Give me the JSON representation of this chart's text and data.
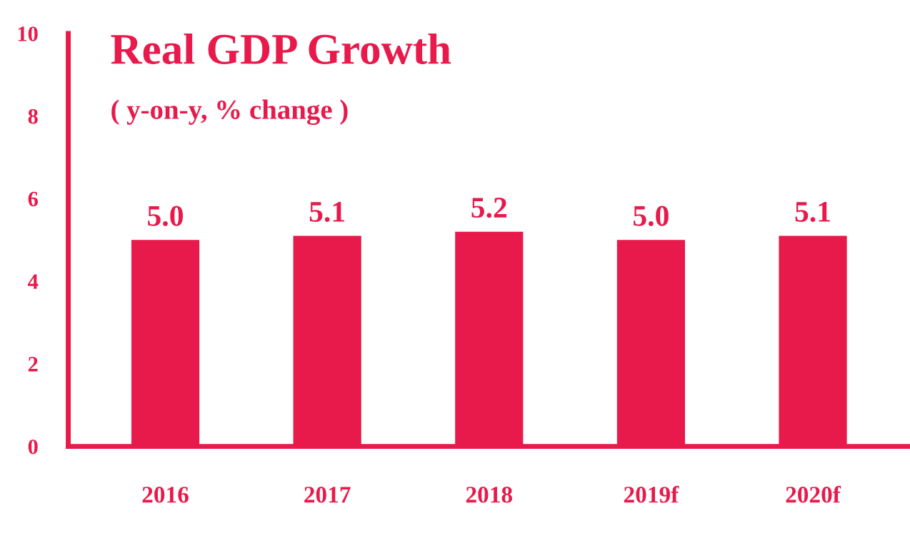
{
  "chart_data": {
    "type": "bar",
    "title": "Real GDP Growth",
    "subtitle": "( y-on-y, % change )",
    "categories": [
      "2016",
      "2017",
      "2018",
      "2019f",
      "2020f"
    ],
    "values": [
      5.0,
      5.1,
      5.2,
      5.0,
      5.1
    ],
    "color": "#e8194b",
    "ylim": [
      0,
      10
    ],
    "yticks": [
      0,
      2,
      4,
      6,
      8,
      10
    ],
    "value_labels": [
      "5.0",
      "5.1",
      "5.2",
      "5.0",
      "5.1"
    ],
    "grid": false
  }
}
